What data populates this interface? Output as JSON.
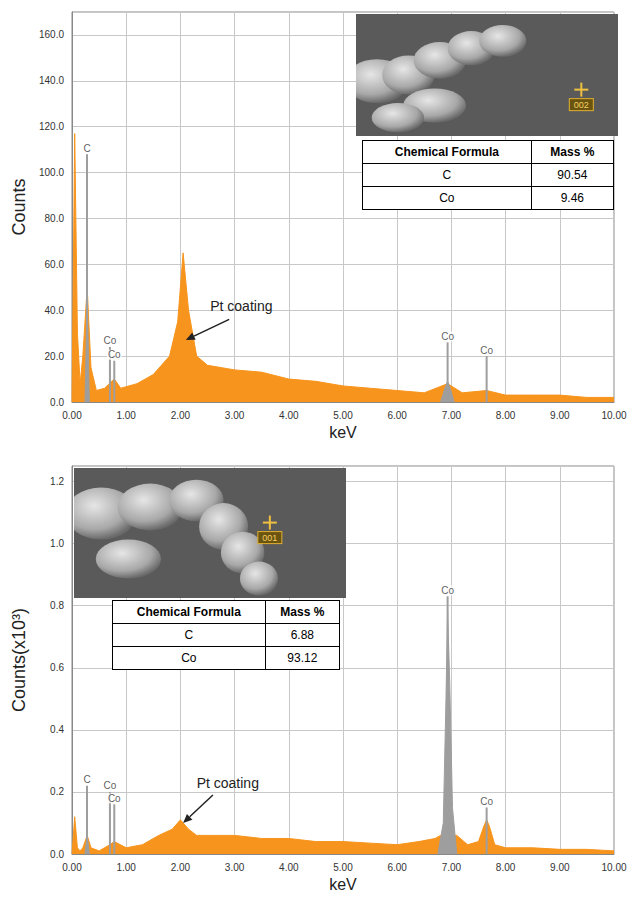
{
  "chart_data": [
    {
      "type": "area",
      "x_label": "keV",
      "y_label": "Counts",
      "x": [
        0,
        0.05,
        0.1,
        0.15,
        0.2,
        0.28,
        0.35,
        0.45,
        0.6,
        0.78,
        0.9,
        1.2,
        1.5,
        1.8,
        1.95,
        2.05,
        2.15,
        2.3,
        2.5,
        3.0,
        3.5,
        4.0,
        4.5,
        5.0,
        5.5,
        6.0,
        6.5,
        6.93,
        7.2,
        7.65,
        8.0,
        8.5,
        9.0,
        9.5,
        10.0
      ],
      "values": [
        0,
        117,
        30,
        8,
        20,
        50,
        15,
        5,
        6,
        10,
        6,
        8,
        12,
        20,
        35,
        65,
        40,
        20,
        16,
        14,
        13,
        10,
        9,
        7,
        6,
        5,
        4,
        8,
        4,
        5,
        3,
        3,
        3,
        2,
        2
      ],
      "color": "#f7941d",
      "peak_color": "#9e9e9e",
      "peak_fill": [
        {
          "x": [
            0.24,
            0.28,
            0.32
          ],
          "values": [
            0,
            48,
            0
          ]
        },
        {
          "x": [
            6.8,
            6.88,
            6.93,
            6.98,
            7.05
          ],
          "values": [
            0,
            6,
            9,
            6,
            0
          ]
        }
      ],
      "peak_markers": [
        {
          "label": "C",
          "x": 0.277,
          "height": 108
        },
        {
          "label": "Co",
          "x": 0.7,
          "height": 24
        },
        {
          "label": "Co",
          "x": 0.78,
          "height": 18
        },
        {
          "label": "Co",
          "x": 6.93,
          "height": 26
        },
        {
          "label": "Co",
          "x": 7.65,
          "height": 20
        }
      ],
      "annotation": {
        "text": "Pt coating",
        "x": 2.55,
        "y": 42,
        "arrow_from": [
          2.9,
          36
        ],
        "arrow_to": [
          2.1,
          27
        ]
      },
      "xlim": [
        0,
        10
      ],
      "xticks": [
        {
          "value": 0,
          "label": "0.00"
        },
        {
          "value": 1,
          "label": "1.00"
        },
        {
          "value": 2,
          "label": "2.00"
        },
        {
          "value": 3,
          "label": "3.00"
        },
        {
          "value": 4,
          "label": "4.00"
        },
        {
          "value": 5,
          "label": "5.00"
        },
        {
          "value": 6,
          "label": "6.00"
        },
        {
          "value": 7,
          "label": "7.00"
        },
        {
          "value": 8,
          "label": "8.00"
        },
        {
          "value": 9,
          "label": "9.00"
        },
        {
          "value": 10,
          "label": "10.00"
        }
      ],
      "ylim": [
        0,
        170
      ],
      "yticks": [
        {
          "value": 0,
          "label": "0.0"
        },
        {
          "value": 20,
          "label": "20.0"
        },
        {
          "value": 40,
          "label": "40.0"
        },
        {
          "value": 60,
          "label": "60.0"
        },
        {
          "value": 80,
          "label": "80.0"
        },
        {
          "value": 100,
          "label": "100.0"
        },
        {
          "value": 120,
          "label": "120.0"
        },
        {
          "value": 140,
          "label": "140.0"
        },
        {
          "value": 160,
          "label": "160.0"
        }
      ],
      "grid": true,
      "inset": {
        "spot_label": "002",
        "table": {
          "columns": [
            "Chemical Formula",
            "Mass %"
          ],
          "rows": [
            [
              "C",
              90.54
            ],
            [
              "Co",
              9.46
            ]
          ]
        }
      }
    },
    {
      "type": "area",
      "x_label": "keV",
      "y_label": "Counts(x10³)",
      "x": [
        0,
        0.05,
        0.1,
        0.15,
        0.2,
        0.28,
        0.35,
        0.5,
        0.7,
        0.78,
        1.0,
        1.3,
        1.6,
        1.85,
        2.0,
        2.15,
        2.3,
        2.6,
        3.0,
        3.5,
        4.0,
        4.5,
        5.0,
        5.5,
        6.0,
        6.4,
        6.7,
        6.8,
        7.1,
        7.3,
        7.5,
        7.6,
        7.65,
        7.7,
        7.8,
        8.0,
        8.5,
        9.0,
        9.5,
        10.0
      ],
      "values": [
        0,
        0.12,
        0.02,
        0.01,
        0.02,
        0.06,
        0.02,
        0.01,
        0.03,
        0.04,
        0.02,
        0.03,
        0.06,
        0.08,
        0.11,
        0.08,
        0.06,
        0.06,
        0.06,
        0.05,
        0.05,
        0.04,
        0.04,
        0.035,
        0.03,
        0.04,
        0.05,
        0.06,
        0.06,
        0.03,
        0.04,
        0.09,
        0.11,
        0.09,
        0.03,
        0.02,
        0.02,
        0.015,
        0.015,
        0.01
      ],
      "color": "#f7941d",
      "peak_color": "#9e9e9e",
      "peak_fill": [
        {
          "x": [
            0.24,
            0.28,
            0.32
          ],
          "values": [
            0,
            0.06,
            0
          ]
        },
        {
          "x": [
            6.75,
            6.85,
            6.9,
            6.93,
            6.97,
            7.02,
            7.1
          ],
          "values": [
            0,
            0.1,
            0.5,
            0.78,
            0.55,
            0.15,
            0
          ]
        }
      ],
      "peak_markers": [
        {
          "label": "C",
          "x": 0.277,
          "height": 0.22
        },
        {
          "label": "Co",
          "x": 0.7,
          "height": 0.2
        },
        {
          "label": "Co",
          "x": 0.78,
          "height": 0.16
        },
        {
          "label": "Co",
          "x": 6.93,
          "height": 0.83
        },
        {
          "label": "Co",
          "x": 7.65,
          "height": 0.15
        }
      ],
      "annotation": {
        "text": "Pt coating",
        "x": 2.3,
        "y": 0.23,
        "arrow_from": [
          2.6,
          0.19
        ],
        "arrow_to": [
          2.05,
          0.1
        ]
      },
      "xlim": [
        0,
        10
      ],
      "xticks": [
        {
          "value": 0,
          "label": "0.00"
        },
        {
          "value": 1,
          "label": "1.00"
        },
        {
          "value": 2,
          "label": "2.00"
        },
        {
          "value": 3,
          "label": "3.00"
        },
        {
          "value": 4,
          "label": "4.00"
        },
        {
          "value": 5,
          "label": "5.00"
        },
        {
          "value": 6,
          "label": "6.00"
        },
        {
          "value": 7,
          "label": "7.00"
        },
        {
          "value": 8,
          "label": "8.00"
        },
        {
          "value": 9,
          "label": "9.00"
        },
        {
          "value": 10,
          "label": "10.00"
        }
      ],
      "ylim": [
        0,
        1.25
      ],
      "yticks": [
        {
          "value": 0,
          "label": "0.0"
        },
        {
          "value": 0.2,
          "label": "0.2"
        },
        {
          "value": 0.4,
          "label": "0.4"
        },
        {
          "value": 0.6,
          "label": "0.6"
        },
        {
          "value": 0.8,
          "label": "0.8"
        },
        {
          "value": 1.0,
          "label": "1.0"
        },
        {
          "value": 1.2,
          "label": "1.2"
        }
      ],
      "grid": true,
      "inset": {
        "spot_label": "001",
        "table": {
          "columns": [
            "Chemical Formula",
            "Mass %"
          ],
          "rows": [
            [
              "C",
              6.88
            ],
            [
              "Co",
              93.12
            ]
          ]
        }
      }
    }
  ]
}
